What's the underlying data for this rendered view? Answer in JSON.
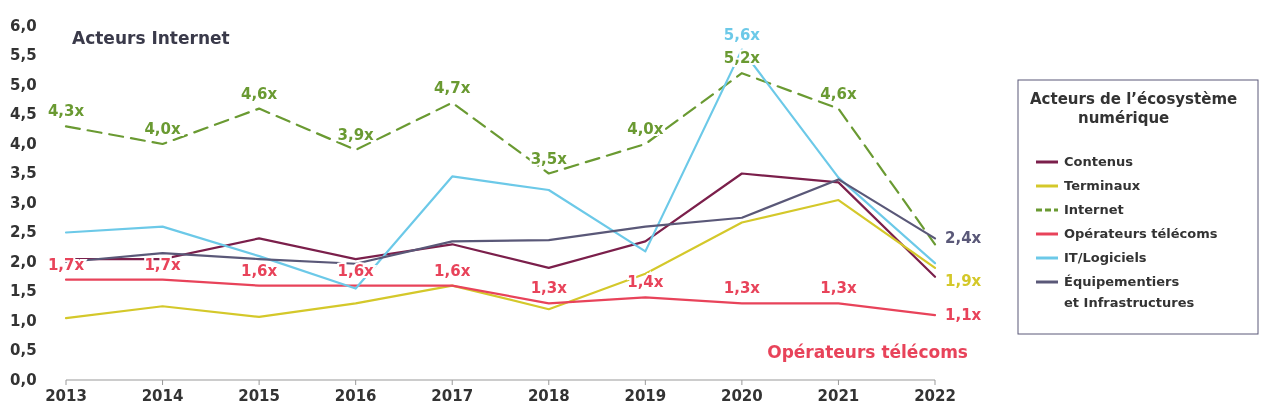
{
  "chart_data": {
    "type": "line",
    "x": [
      2013,
      2014,
      2015,
      2016,
      2017,
      2018,
      2019,
      2020,
      2021,
      2022
    ],
    "xlim": [
      2013,
      2022
    ],
    "xticks": [
      2013,
      2014,
      2015,
      2016,
      2017,
      2018,
      2019,
      2020,
      2021,
      2022
    ],
    "ylim": [
      0,
      6
    ],
    "yticks": [
      {
        "value": 0,
        "label": "0,0"
      },
      {
        "value": 0.5,
        "label": "0,5"
      },
      {
        "value": 1,
        "label": "1,0"
      },
      {
        "value": 1.5,
        "label": "1,5"
      },
      {
        "value": 2,
        "label": "2,0"
      },
      {
        "value": 2.5,
        "label": "2,5"
      },
      {
        "value": 3,
        "label": "3,0"
      },
      {
        "value": 3.5,
        "label": "3,5"
      },
      {
        "value": 4,
        "label": "4,0"
      },
      {
        "value": 4.5,
        "label": "4,5"
      },
      {
        "value": 5,
        "label": "5,0"
      },
      {
        "value": 5.5,
        "label": "5,5"
      },
      {
        "value": 6,
        "label": "6,0"
      }
    ],
    "grid": false,
    "legend": "right",
    "legend_title": "Acteurs de l’écosystème\nnumérique",
    "marker": "none",
    "annotations": [
      "Acteurs Internet",
      "Opérateurs télécoms"
    ],
    "series": [
      {
        "name": "Contenus",
        "color": "#7b1f4b",
        "line_style": "solid",
        "values": [
          2.05,
          2.05,
          2.4,
          2.05,
          2.3,
          1.9,
          2.35,
          3.5,
          3.35,
          1.75
        ]
      },
      {
        "name": "Terminaux",
        "color": "#d4c82a",
        "line_style": "solid",
        "values": [
          1.05,
          1.25,
          1.07,
          1.3,
          1.6,
          1.2,
          1.8,
          2.67,
          3.05,
          1.9
        ],
        "value_labels": [
          null,
          null,
          null,
          null,
          null,
          null,
          null,
          null,
          null,
          "1,9x"
        ]
      },
      {
        "name": "Internet",
        "color": "#6a9a32",
        "line_style": "dashed",
        "values": [
          4.3,
          4.0,
          4.6,
          3.9,
          4.7,
          3.5,
          4.0,
          5.2,
          4.6,
          2.3
        ],
        "value_labels": [
          "4,3x",
          "4,0x",
          "4,6x",
          "3,9x",
          "4,7x",
          "3,5x",
          "4,0x",
          "5,2x",
          "4,6x",
          null
        ]
      },
      {
        "name": "Opérateurs télécoms",
        "color": "#e8435a",
        "line_style": "solid",
        "values": [
          1.7,
          1.7,
          1.6,
          1.6,
          1.6,
          1.3,
          1.4,
          1.3,
          1.3,
          1.1
        ],
        "value_labels": [
          "1,7x",
          "1,7x",
          "1,6x",
          "1,6x",
          "1,6x",
          "1,3x",
          "1,4x",
          "1,3x",
          "1,3x",
          "1,1x"
        ]
      },
      {
        "name": "IT/Logiciels",
        "color": "#6cc9e8",
        "line_style": "solid",
        "values": [
          2.5,
          2.6,
          2.1,
          1.55,
          3.45,
          3.22,
          2.18,
          5.6,
          3.43,
          1.98
        ],
        "value_labels": [
          null,
          null,
          null,
          null,
          null,
          null,
          null,
          "5,6x",
          null,
          null
        ]
      },
      {
        "name": "Équipementiers\net Infrastructures",
        "color": "#5a5878",
        "line_style": "solid",
        "values": [
          2.0,
          2.15,
          2.05,
          1.97,
          2.35,
          2.37,
          2.6,
          2.75,
          3.4,
          2.4
        ],
        "value_labels": [
          null,
          null,
          null,
          null,
          null,
          null,
          null,
          null,
          null,
          "2,4x"
        ]
      }
    ]
  }
}
